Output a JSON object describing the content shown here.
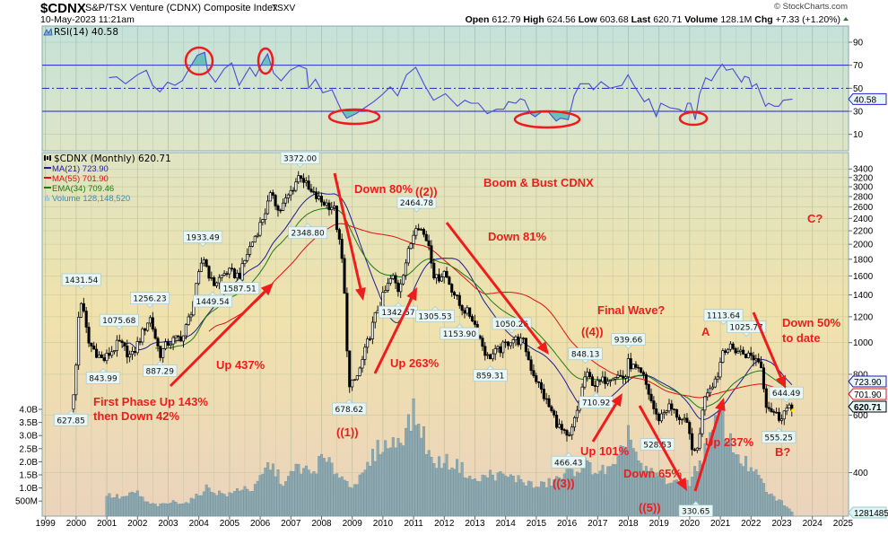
{
  "header": {
    "symbol": "$CDNX",
    "name": "S&P/TSX Venture (CDNX) Composite Index",
    "exchange": "TSXV",
    "datetime": "10-May-2023 11:21am",
    "watermark": "© StockCharts.com",
    "open_label": "Open",
    "open": "612.79",
    "high_label": "High",
    "high": "624.56",
    "low_label": "Low",
    "low": "603.68",
    "last_label": "Last",
    "last": "620.71",
    "volume_label": "Volume",
    "volume": "128.1M",
    "chg_label": "Chg",
    "chg": "+7.33 (+1.20%)",
    "chg_direction": "up"
  },
  "colors": {
    "ma21": "#1c1c9c",
    "ma55": "#e01010",
    "ema34": "#1f7a12",
    "volume": "#8fa9b1",
    "annotation": "#ee1c1c",
    "rsi_line": "#4a4ad8",
    "rsi_fill": "#6cc0b8"
  },
  "chart_data": {
    "type": "candlestick+line+bar",
    "title": "Boom & Bust CDNX",
    "rsi": {
      "legend": "RSI(14) 40.58",
      "current": "40.58",
      "ylim": [
        0,
        100
      ],
      "ticks": [
        "90",
        "70",
        "50",
        "30",
        "10"
      ],
      "overbought": 70,
      "oversold": 30,
      "midline": 50,
      "points": [
        [
          2001.07,
          59.1
        ],
        [
          2001.32,
          59.9
        ],
        [
          2001.61,
          53.9
        ],
        [
          2002.0,
          61.7
        ],
        [
          2002.29,
          65.6
        ],
        [
          2002.49,
          52.6
        ],
        [
          2002.73,
          46.9
        ],
        [
          2002.98,
          55.2
        ],
        [
          2003.22,
          52.6
        ],
        [
          2003.46,
          56.5
        ],
        [
          2003.71,
          68.2
        ],
        [
          2003.95,
          78.6
        ],
        [
          2004.19,
          81.2
        ],
        [
          2004.29,
          64.3
        ],
        [
          2004.54,
          55.2
        ],
        [
          2004.83,
          66.9
        ],
        [
          2005.07,
          72.1
        ],
        [
          2005.31,
          52.6
        ],
        [
          2005.66,
          68.2
        ],
        [
          2005.85,
          60.4
        ],
        [
          2006.09,
          73.4
        ],
        [
          2006.24,
          79.9
        ],
        [
          2006.44,
          63.0
        ],
        [
          2006.68,
          56.5
        ],
        [
          2006.97,
          65.6
        ],
        [
          2007.26,
          69.5
        ],
        [
          2007.51,
          66.9
        ],
        [
          2007.58,
          50.0
        ],
        [
          2007.8,
          57.8
        ],
        [
          2008.04,
          46.1
        ],
        [
          2008.34,
          48.7
        ],
        [
          2008.63,
          31.8
        ],
        [
          2008.82,
          24.0
        ],
        [
          2009.12,
          27.9
        ],
        [
          2009.41,
          33.1
        ],
        [
          2009.7,
          38.3
        ],
        [
          2009.99,
          44.8
        ],
        [
          2010.24,
          51.3
        ],
        [
          2010.48,
          43.5
        ],
        [
          2010.77,
          61.7
        ],
        [
          2011.07,
          68.2
        ],
        [
          2011.36,
          52.6
        ],
        [
          2011.65,
          39.6
        ],
        [
          2012.04,
          45.3
        ],
        [
          2012.43,
          34.4
        ],
        [
          2012.67,
          39.6
        ],
        [
          2012.87,
          37.0
        ],
        [
          2013.11,
          37.0
        ],
        [
          2013.4,
          27.9
        ],
        [
          2013.7,
          31.8
        ],
        [
          2013.94,
          31.8
        ],
        [
          2014.09,
          38.3
        ],
        [
          2014.33,
          37.0
        ],
        [
          2014.48,
          40.9
        ],
        [
          2014.62,
          39.6
        ],
        [
          2014.82,
          27.9
        ],
        [
          2014.96,
          25.3
        ],
        [
          2015.16,
          29.2
        ],
        [
          2015.4,
          29.2
        ],
        [
          2015.65,
          21.5
        ],
        [
          2015.79,
          24.0
        ],
        [
          2016.04,
          22.7
        ],
        [
          2016.23,
          43.5
        ],
        [
          2016.43,
          53.9
        ],
        [
          2016.72,
          53.9
        ],
        [
          2016.86,
          48.7
        ],
        [
          2017.11,
          55.7
        ],
        [
          2017.4,
          50.0
        ],
        [
          2017.79,
          52.6
        ],
        [
          2017.99,
          61.7
        ],
        [
          2018.18,
          52.6
        ],
        [
          2018.52,
          38.3
        ],
        [
          2018.67,
          40.9
        ],
        [
          2018.91,
          25.3
        ],
        [
          2019.06,
          37.0
        ],
        [
          2019.35,
          33.1
        ],
        [
          2019.64,
          31.8
        ],
        [
          2019.84,
          29.2
        ],
        [
          2019.93,
          37.0
        ],
        [
          2020.03,
          37.0
        ],
        [
          2020.18,
          22.7
        ],
        [
          2020.32,
          44.8
        ],
        [
          2020.52,
          59.1
        ],
        [
          2020.71,
          56.5
        ],
        [
          2020.91,
          65.6
        ],
        [
          2021.06,
          70.8
        ],
        [
          2021.2,
          65.6
        ],
        [
          2021.4,
          66.9
        ],
        [
          2021.69,
          55.2
        ],
        [
          2021.79,
          60.4
        ],
        [
          2021.93,
          59.1
        ],
        [
          2022.03,
          51.3
        ],
        [
          2022.18,
          53.9
        ],
        [
          2022.47,
          34.4
        ],
        [
          2022.57,
          37.0
        ],
        [
          2022.76,
          34.4
        ],
        [
          2022.91,
          34.4
        ],
        [
          2023.05,
          39.6
        ],
        [
          2023.35,
          40.58
        ]
      ]
    },
    "price": {
      "legend_symbol": "$CDNX (Monthly) 620.71",
      "scale": "log",
      "ylim": [
        300,
        3500
      ],
      "ticks": [
        "3400",
        "3200",
        "3000",
        "2800",
        "2600",
        "2400",
        "2200",
        "2000",
        "1800",
        "1600",
        "1400",
        "1200",
        "1000",
        "800",
        "600",
        "400"
      ],
      "close_keypoints": [
        [
          1999.83,
          640
        ],
        [
          1999.95,
          700
        ],
        [
          2000.08,
          1200
        ],
        [
          2000.17,
          1350
        ],
        [
          2000.4,
          1000
        ],
        [
          2000.88,
          880
        ],
        [
          2001.4,
          1000
        ],
        [
          2001.8,
          900
        ],
        [
          2002.4,
          1200
        ],
        [
          2002.73,
          920
        ],
        [
          2003.0,
          1000
        ],
        [
          2003.5,
          1050
        ],
        [
          2003.8,
          1300
        ],
        [
          2004.13,
          1850
        ],
        [
          2004.45,
          1500
        ],
        [
          2004.9,
          1650
        ],
        [
          2005.33,
          1600
        ],
        [
          2005.6,
          1900
        ],
        [
          2006.0,
          2300
        ],
        [
          2006.4,
          2900
        ],
        [
          2006.6,
          2500
        ],
        [
          2007.0,
          2900
        ],
        [
          2007.3,
          3300
        ],
        [
          2007.6,
          2900
        ],
        [
          2008.0,
          2700
        ],
        [
          2008.4,
          2600
        ],
        [
          2008.7,
          1700
        ],
        [
          2008.9,
          720
        ],
        [
          2009.2,
          800
        ],
        [
          2009.8,
          1250
        ],
        [
          2010.3,
          1600
        ],
        [
          2010.5,
          1450
        ],
        [
          2010.9,
          2000
        ],
        [
          2011.1,
          2350
        ],
        [
          2011.5,
          2000
        ],
        [
          2011.7,
          1550
        ],
        [
          2012.0,
          1650
        ],
        [
          2012.5,
          1300
        ],
        [
          2012.9,
          1200
        ],
        [
          2013.4,
          900
        ],
        [
          2013.8,
          950
        ],
        [
          2014.2,
          1030
        ],
        [
          2014.6,
          1000
        ],
        [
          2014.8,
          850
        ],
        [
          2015.2,
          700
        ],
        [
          2015.7,
          560
        ],
        [
          2016.05,
          500
        ],
        [
          2016.3,
          600
        ],
        [
          2016.6,
          800
        ],
        [
          2016.95,
          740
        ],
        [
          2017.5,
          800
        ],
        [
          2017.9,
          780
        ],
        [
          2018.0,
          870
        ],
        [
          2018.5,
          780
        ],
        [
          2018.95,
          580
        ],
        [
          2019.3,
          640
        ],
        [
          2019.9,
          560
        ],
        [
          2020.2,
          440
        ],
        [
          2020.5,
          700
        ],
        [
          2020.9,
          790
        ],
        [
          2021.1,
          970
        ],
        [
          2021.5,
          950
        ],
        [
          2021.85,
          920
        ],
        [
          2022.3,
          880
        ],
        [
          2022.5,
          650
        ],
        [
          2022.9,
          590
        ],
        [
          2023.15,
          625
        ],
        [
          2023.35,
          620.71
        ]
      ],
      "pivot_labels": [
        {
          "text": "627.85",
          "t": 1999.83,
          "value": 627.85,
          "pos": "below"
        },
        {
          "text": "1431.54",
          "t": 2000.17,
          "value": 1431.54,
          "pos": "above"
        },
        {
          "text": "843.99",
          "t": 2000.88,
          "value": 843.99,
          "pos": "below"
        },
        {
          "text": "1075.68",
          "t": 2001.4,
          "value": 1075.68,
          "pos": "above"
        },
        {
          "text": "1256.23",
          "t": 2002.4,
          "value": 1256.23,
          "pos": "above"
        },
        {
          "text": "887.29",
          "t": 2002.73,
          "value": 887.29,
          "pos": "below"
        },
        {
          "text": "1933.49",
          "t": 2004.13,
          "value": 1933.49,
          "pos": "above"
        },
        {
          "text": "1449.54",
          "t": 2004.45,
          "value": 1449.54,
          "pos": "below"
        },
        {
          "text": "1587.51",
          "t": 2005.33,
          "value": 1587.51,
          "pos": "below"
        },
        {
          "text": "3372.00",
          "t": 2007.3,
          "value": 3372.0,
          "pos": "above"
        },
        {
          "text": "2348.80",
          "t": 2007.55,
          "value": 2348.8,
          "pos": "below"
        },
        {
          "text": "678.62",
          "t": 2008.9,
          "value": 678.62,
          "pos": "below"
        },
        {
          "text": "1342.57",
          "t": 2010.5,
          "value": 1342.57,
          "pos": "below"
        },
        {
          "text": "2464.78",
          "t": 2011.1,
          "value": 2464.78,
          "pos": "above"
        },
        {
          "text": "1305.53",
          "t": 2011.7,
          "value": 1305.53,
          "pos": "below"
        },
        {
          "text": "1153.90",
          "t": 2012.5,
          "value": 1153.9,
          "pos": "below"
        },
        {
          "text": "859.31",
          "t": 2013.5,
          "value": 859.31,
          "pos": "below"
        },
        {
          "text": "1050.26",
          "t": 2014.2,
          "value": 1050.26,
          "pos": "above"
        },
        {
          "text": "466.43",
          "t": 2016.05,
          "value": 466.43,
          "pos": "below"
        },
        {
          "text": "848.13",
          "t": 2016.6,
          "value": 848.13,
          "pos": "above"
        },
        {
          "text": "710.92",
          "t": 2016.95,
          "value": 710.92,
          "pos": "below"
        },
        {
          "text": "939.66",
          "t": 2018.0,
          "value": 939.66,
          "pos": "above"
        },
        {
          "text": "528.53",
          "t": 2018.95,
          "value": 528.53,
          "pos": "below"
        },
        {
          "text": "330.65",
          "t": 2020.2,
          "value": 330.65,
          "pos": "below"
        },
        {
          "text": "1113.64",
          "t": 2021.1,
          "value": 1113.64,
          "pos": "above"
        },
        {
          "text": "1025.77",
          "t": 2021.85,
          "value": 1025.77,
          "pos": "above"
        },
        {
          "text": "555.25",
          "t": 2022.9,
          "value": 555.25,
          "pos": "below"
        },
        {
          "text": "644.49",
          "t": 2023.15,
          "value": 644.49,
          "pos": "above"
        }
      ]
    },
    "overlays": [
      {
        "name": "MA(21)",
        "legend": "MA(21) 723.90",
        "value": "723.90",
        "period": 21,
        "kind": "sma",
        "color_key": "ma21"
      },
      {
        "name": "MA(55)",
        "legend": "MA(55) 701.90",
        "value": "701.90",
        "period": 55,
        "kind": "sma",
        "color_key": "ma55"
      },
      {
        "name": "EMA(34)",
        "legend": "EMA(34) 709.46",
        "value": "709.46",
        "period": 34,
        "kind": "ema",
        "color_key": "ema34"
      }
    ],
    "volume": {
      "legend": "Volume 128,148,520",
      "tag": "1281485",
      "unit": "billions",
      "ticks": [
        "4.0B",
        "3.5B",
        "3.0B",
        "2.5B",
        "2.0B",
        "1.5B",
        "1.0B",
        "500M"
      ],
      "profile": [
        [
          2001.0,
          0.8
        ],
        [
          2001.5,
          0.7
        ],
        [
          2002.0,
          0.9
        ],
        [
          2002.3,
          0.5
        ],
        [
          2002.7,
          0.4
        ],
        [
          2003.2,
          0.55
        ],
        [
          2003.6,
          0.5
        ],
        [
          2004.0,
          0.8
        ],
        [
          2004.2,
          1.1
        ],
        [
          2004.6,
          0.9
        ],
        [
          2005.0,
          0.8
        ],
        [
          2005.4,
          1.1
        ],
        [
          2005.8,
          1.0
        ],
        [
          2006.0,
          1.4
        ],
        [
          2006.3,
          2.0
        ],
        [
          2006.8,
          1.2
        ],
        [
          2007.2,
          1.9
        ],
        [
          2007.7,
          1.6
        ],
        [
          2008.0,
          2.2
        ],
        [
          2008.5,
          1.7
        ],
        [
          2008.9,
          1.2
        ],
        [
          2009.3,
          1.4
        ],
        [
          2009.6,
          2.1
        ],
        [
          2009.9,
          2.7
        ],
        [
          2010.3,
          2.7
        ],
        [
          2010.7,
          3.2
        ],
        [
          2011.0,
          3.9
        ],
        [
          2011.3,
          3.2
        ],
        [
          2011.6,
          2.0
        ],
        [
          2012.0,
          2.1
        ],
        [
          2012.5,
          1.9
        ],
        [
          2013.0,
          1.3
        ],
        [
          2013.5,
          1.6
        ],
        [
          2014.0,
          1.5
        ],
        [
          2014.5,
          1.4
        ],
        [
          2015.0,
          1.1
        ],
        [
          2015.5,
          1.3
        ],
        [
          2016.0,
          1.6
        ],
        [
          2016.6,
          2.0
        ],
        [
          2017.0,
          1.7
        ],
        [
          2017.6,
          1.8
        ],
        [
          2018.0,
          3.3
        ],
        [
          2018.4,
          1.8
        ],
        [
          2019.0,
          1.5
        ],
        [
          2019.6,
          1.2
        ],
        [
          2020.0,
          1.3
        ],
        [
          2020.3,
          2.0
        ],
        [
          2020.7,
          3.0
        ],
        [
          2021.0,
          3.9
        ],
        [
          2021.4,
          2.6
        ],
        [
          2021.9,
          1.9
        ],
        [
          2022.3,
          1.4
        ],
        [
          2022.6,
          0.8
        ],
        [
          2023.0,
          0.55
        ],
        [
          2023.35,
          0.13
        ]
      ]
    },
    "x_ticks": [
      "1999",
      "2000",
      "2001",
      "2002",
      "2003",
      "2004",
      "2005",
      "2006",
      "2007",
      "2008",
      "2009",
      "2010",
      "2011",
      "2012",
      "2013",
      "2014",
      "2015",
      "2016",
      "2017",
      "2018",
      "2019",
      "2020",
      "2021",
      "2022",
      "2023",
      "2024",
      "2025"
    ],
    "annotations": [
      "Boom & Bust CDNX",
      "Down 80%",
      "((2))",
      "Down 81%",
      "Final Wave?",
      "((4))",
      "A",
      "Down 50%",
      "to date",
      "C?",
      "Up 437%",
      "Up 263%",
      "First Phase Up 143%",
      "then Down 42%",
      "((1))",
      "Up 101%",
      "Down 65%",
      "Up 237%",
      "B?",
      "((3))",
      "((5))"
    ]
  }
}
